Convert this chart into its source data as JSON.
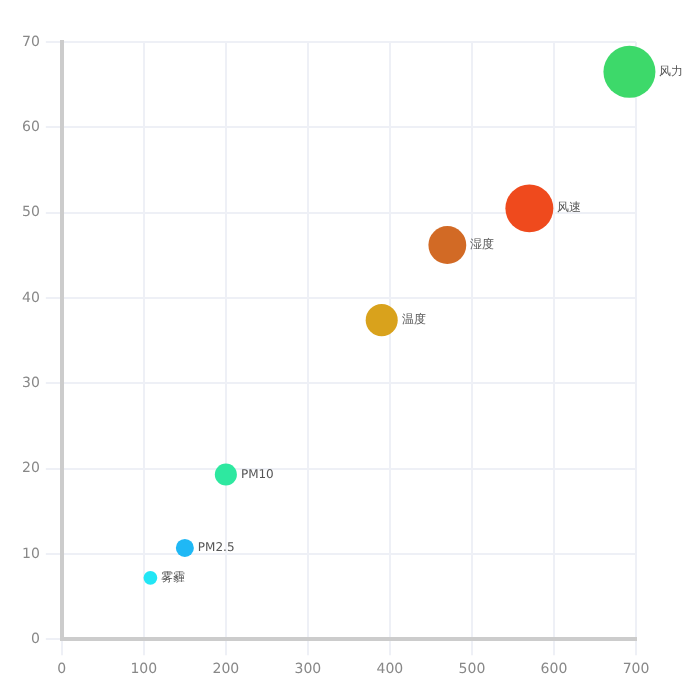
{
  "chart_data": {
    "type": "bubble",
    "xlim": [
      0,
      700
    ],
    "xticks": [
      0,
      100,
      200,
      300,
      400,
      500,
      600,
      700
    ],
    "ylim": [
      0,
      70
    ],
    "yticks": [
      0,
      10,
      20,
      30,
      40,
      50,
      60,
      70
    ],
    "grid": true,
    "legend": false,
    "series": [
      {
        "name": "雾霾",
        "color": "#22e6f5",
        "x": [
          108
        ],
        "values": [
          7.2
        ],
        "sizes": [
          0.07
        ]
      },
      {
        "name": "PM2.5",
        "color": "#1fb8f5",
        "x": [
          150
        ],
        "values": [
          10.7
        ],
        "sizes": [
          0.12
        ]
      },
      {
        "name": "PM10",
        "color": "#2ee8a0",
        "x": [
          200
        ],
        "values": [
          19.3
        ],
        "sizes": [
          0.18
        ]
      },
      {
        "name": "温度",
        "color": "#d9a21c",
        "x": [
          390
        ],
        "values": [
          37.4
        ],
        "sizes": [
          0.38
        ]
      },
      {
        "name": "湿度",
        "color": "#d26a25",
        "x": [
          470
        ],
        "values": [
          46.2
        ],
        "sizes": [
          0.53
        ]
      },
      {
        "name": "风速",
        "color": "#ef4a1d",
        "x": [
          570
        ],
        "values": [
          50.5
        ],
        "sizes": [
          0.85
        ]
      },
      {
        "name": "风力",
        "color": "#3dd96a",
        "x": [
          692
        ],
        "values": [
          66.5
        ],
        "sizes": [
          1
        ]
      }
    ]
  }
}
